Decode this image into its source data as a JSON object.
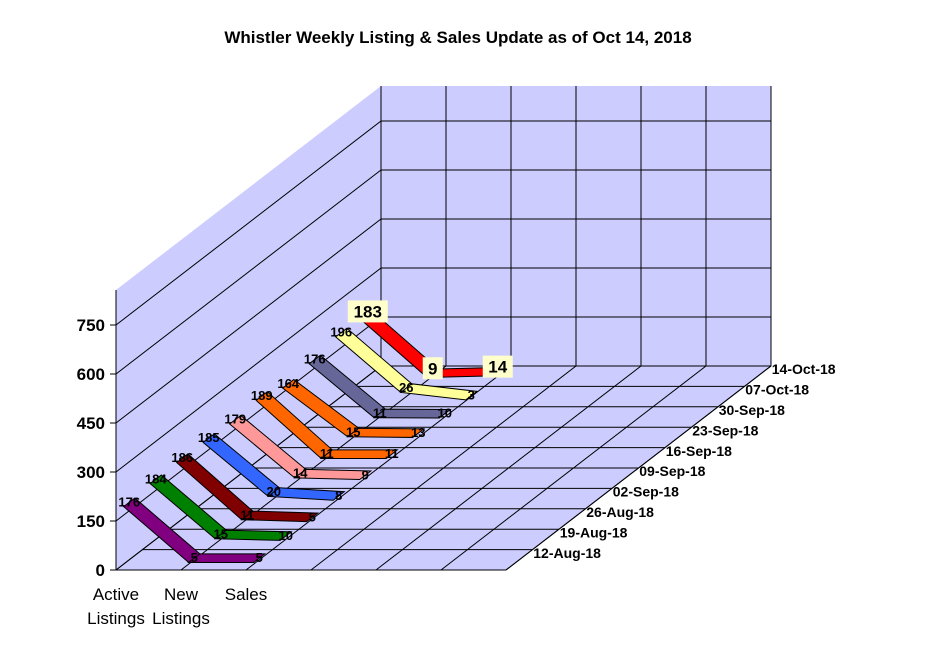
{
  "chart_data": {
    "type": "line",
    "title": "Whistler Weekly Listing & Sales Update as of  Oct 14, 2018",
    "categories": [
      "Active Listings",
      "New Listings",
      "Sales"
    ],
    "category_labels": [
      [
        "Active",
        "Listings"
      ],
      [
        "New",
        "Listings"
      ],
      [
        "Sales"
      ]
    ],
    "y_ticks": [
      "0",
      "150",
      "300",
      "450",
      "600",
      "750"
    ],
    "ylim": [
      0,
      750
    ],
    "grid": true,
    "series": [
      {
        "name": "12-Aug-18",
        "color": "#800080",
        "values": [
          176,
          5,
          5
        ]
      },
      {
        "name": "19-Aug-18",
        "color": "#008000",
        "values": [
          184,
          15,
          10
        ]
      },
      {
        "name": "26-Aug-18",
        "color": "#800000",
        "values": [
          186,
          11,
          5
        ]
      },
      {
        "name": "02-Sep-18",
        "color": "#3366ff",
        "values": [
          185,
          20,
          8
        ]
      },
      {
        "name": "09-Sep-18",
        "color": "#ff9999",
        "values": [
          179,
          14,
          9
        ]
      },
      {
        "name": "16-Sep-18",
        "color": "#ff6600",
        "values": [
          189,
          11,
          11
        ]
      },
      {
        "name": "23-Sep-18",
        "color": "#ff6600",
        "values": [
          164,
          15,
          13
        ]
      },
      {
        "name": "30-Sep-18",
        "color": "#666699",
        "values": [
          176,
          11,
          10
        ]
      },
      {
        "name": "07-Oct-18",
        "color": "#ffff99",
        "values": [
          196,
          26,
          3
        ]
      },
      {
        "name": "14-Oct-18",
        "color": "#ff0000",
        "values": [
          183,
          9,
          14
        ]
      }
    ]
  }
}
